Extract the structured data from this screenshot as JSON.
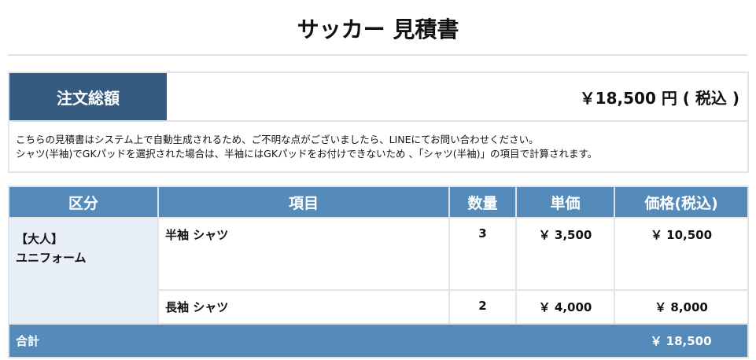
{
  "title": "サッカー 見積書",
  "summary": {
    "label": "注文総額",
    "value": "￥18,500 円 ( 税込 )",
    "notes": [
      "こちらの見積書はシステム上で自動生成されるため、ご不明な点がございましたら、LINEにてお問い合わせください。",
      "シャツ(半袖)でGKパッドを選択された場合は、半袖にはGKパッドをお付けできないため 、「シャツ(半袖)」の項目で計算されます。"
    ]
  },
  "table": {
    "headers": [
      "区分",
      "項目",
      "数量",
      "単価",
      "価格(税込)"
    ],
    "category": [
      "【大人】",
      "ユニフォーム"
    ],
    "rows": [
      {
        "item": "半袖 シャツ",
        "qty": "3",
        "unit": "￥ 3,500",
        "price": "￥ 10,500"
      },
      {
        "item": "長袖 シャツ",
        "qty": "2",
        "unit": "￥ 4,000",
        "price": "￥ 8,000"
      }
    ],
    "total_label": "合計",
    "total_value": "￥ 18,500"
  },
  "colors": {
    "dark_header": "#365b80",
    "table_header": "#558bba",
    "category_bg": "#e9eff6"
  }
}
